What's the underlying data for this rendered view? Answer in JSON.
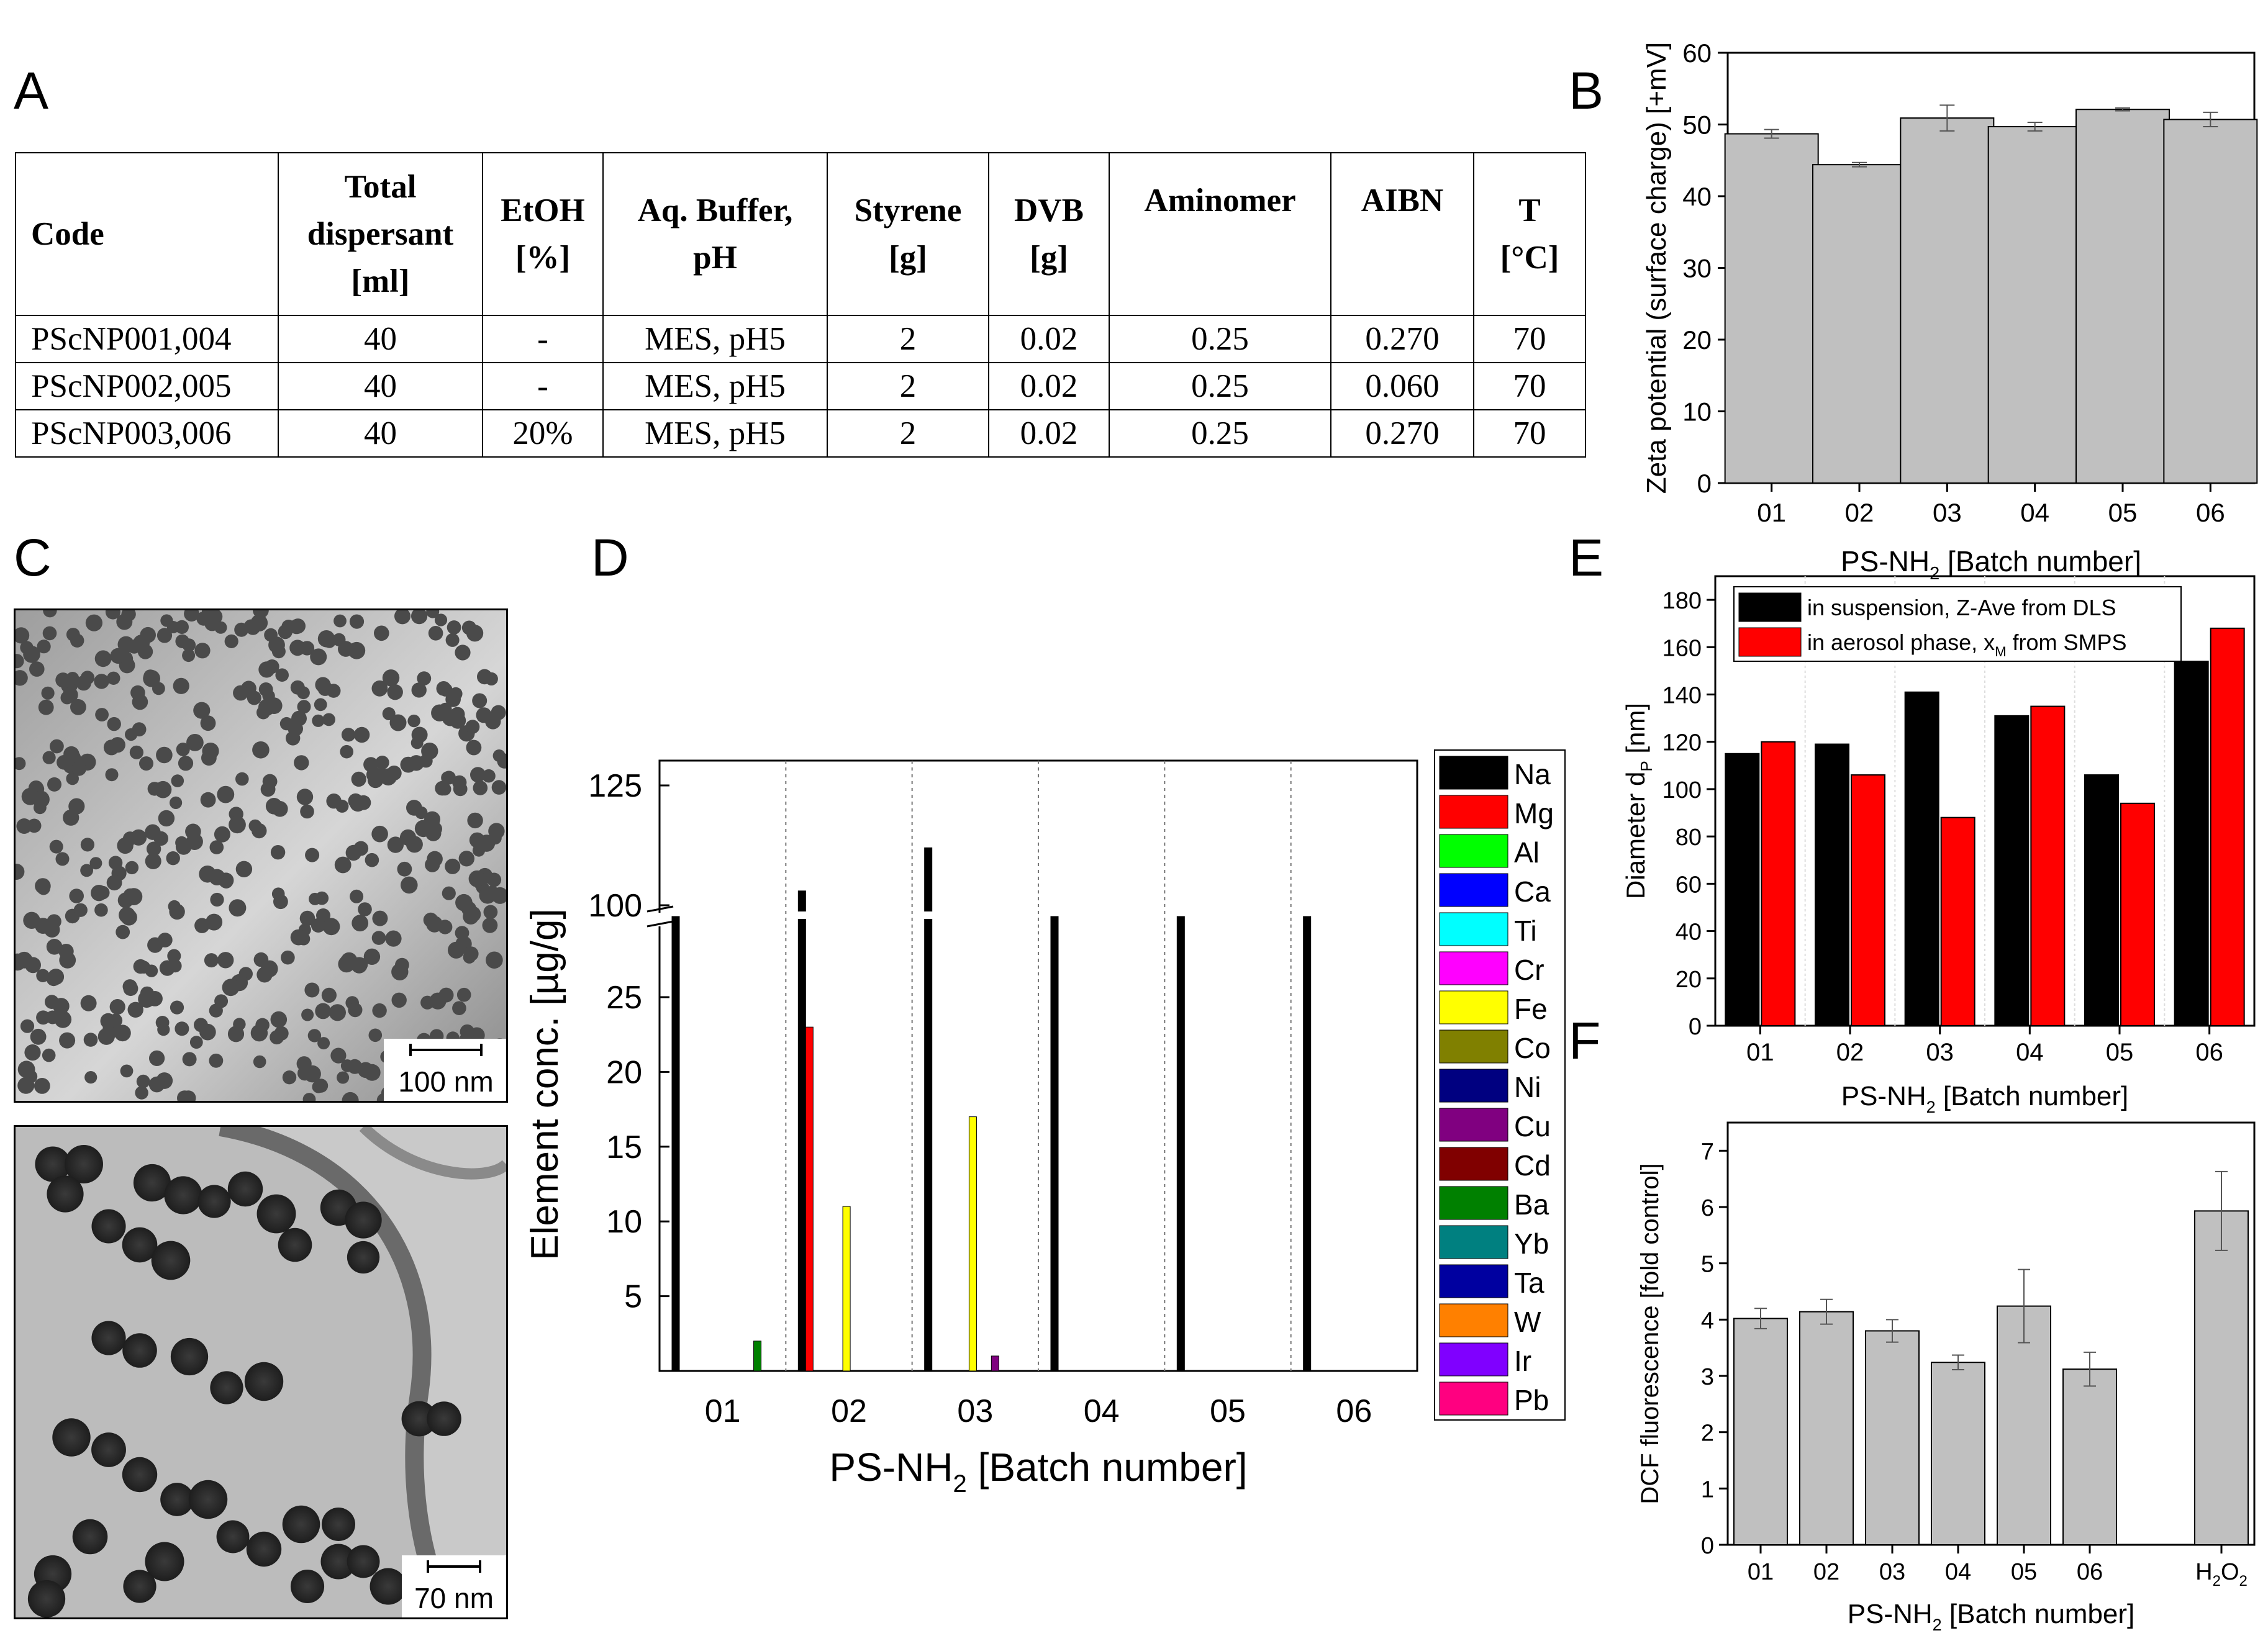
{
  "panel_labels": {
    "a": "A",
    "b": "B",
    "c": "C",
    "d": "D",
    "e": "E",
    "f": "F"
  },
  "table": {
    "headers": [
      "Code",
      "Total dispersant [ml]",
      "EtOH [%]",
      "Aq. Buffer, pH",
      "Styrene [g]",
      "DVB [g]",
      "Aminomer",
      "AIBN",
      "T [°C]"
    ],
    "header_lines": [
      [
        "Code"
      ],
      [
        "Total",
        "dispersant",
        "[ml]"
      ],
      [
        "EtOH",
        "[%]"
      ],
      [
        "Aq. Buffer,",
        "pH"
      ],
      [
        "Styrene",
        "[g]"
      ],
      [
        "DVB",
        "[g]"
      ],
      [
        "Aminomer"
      ],
      [
        "AIBN"
      ],
      [
        "T",
        "[°C]"
      ]
    ],
    "rows": [
      [
        "PScNP001,004",
        "40",
        "-",
        "MES, pH5",
        "2",
        "0.02",
        "0.25",
        "0.270",
        "70"
      ],
      [
        "PScNP002,005",
        "40",
        "-",
        "MES, pH5",
        "2",
        "0.02",
        "0.25",
        "0.060",
        "70"
      ],
      [
        "PScNP003,006",
        "40",
        "20%",
        "MES, pH5",
        "2",
        "0.02",
        "0.25",
        "0.270",
        "70"
      ]
    ]
  },
  "micrographs": {
    "top_scale_bar": "100 nm",
    "bottom_scale_bar": "70 nm"
  },
  "colors": {
    "bar_gray": "#c0c0c0",
    "black": "#000000",
    "red": "#ff0000"
  },
  "chart_data": [
    {
      "id": "B",
      "type": "bar",
      "categories": [
        "01",
        "02",
        "03",
        "04",
        "05",
        "06"
      ],
      "values": [
        48.7,
        44.4,
        50.9,
        49.7,
        52.1,
        50.7
      ],
      "errors": [
        0.6,
        0.3,
        1.8,
        0.6,
        0.2,
        1.0
      ],
      "xlabel": "PS-NH",
      "xlabel_sub": "2",
      "xlabel_tail": " [Batch number]",
      "ylabel": "Zeta potential (surface charge) [+mV]",
      "ylim": [
        0,
        60
      ],
      "yticks": [
        "0",
        "10",
        "20",
        "30",
        "40",
        "50",
        "60"
      ]
    },
    {
      "id": "D",
      "type": "bar",
      "categories": [
        "01",
        "02",
        "03",
        "04",
        "05",
        "06"
      ],
      "xlabel": "PS-NH",
      "xlabel_sub": "2",
      "xlabel_tail": " [Batch number]",
      "ylabel": "Element conc. [µg/g]",
      "yticks_lower": [
        "5",
        "10",
        "15",
        "20",
        "25"
      ],
      "yticks_upper": [
        "100",
        "125"
      ],
      "axis_break": "between 25 and 100",
      "legend": [
        {
          "name": "Na",
          "color": "#000000"
        },
        {
          "name": "Mg",
          "color": "#ff0000"
        },
        {
          "name": "Al",
          "color": "#00ff00"
        },
        {
          "name": "Ca",
          "color": "#0000ff"
        },
        {
          "name": "Ti",
          "color": "#00ffff"
        },
        {
          "name": "Cr",
          "color": "#ff00ff"
        },
        {
          "name": "Fe",
          "color": "#ffff00"
        },
        {
          "name": "Co",
          "color": "#808000"
        },
        {
          "name": "Ni",
          "color": "#000080"
        },
        {
          "name": "Cu",
          "color": "#800080"
        },
        {
          "name": "Cd",
          "color": "#800000"
        },
        {
          "name": "Ba",
          "color": "#008000"
        },
        {
          "name": "Yb",
          "color": "#008080"
        },
        {
          "name": "Ta",
          "color": "#0000a0"
        },
        {
          "name": "W",
          "color": "#ff8000"
        },
        {
          "name": "Ir",
          "color": "#8000ff"
        },
        {
          "name": "Pb",
          "color": "#ff0080"
        }
      ],
      "series_values": {
        "Na": [
          30,
          103,
          112,
          30,
          30,
          30
        ],
        "Mg": [
          0,
          23,
          0,
          0,
          0,
          0
        ],
        "Fe": [
          0,
          11,
          17,
          0,
          0,
          0
        ],
        "Cu": [
          0,
          0,
          1,
          0,
          0,
          0
        ],
        "Ba": [
          2,
          0,
          0,
          0,
          0,
          0
        ]
      }
    },
    {
      "id": "E",
      "type": "bar",
      "categories": [
        "01",
        "02",
        "03",
        "04",
        "05",
        "06"
      ],
      "series": [
        {
          "name": "in suspension, Z-Ave from DLS",
          "color": "#000000",
          "values": [
            115,
            119,
            141,
            131,
            106,
            154
          ]
        },
        {
          "name": "in aerosol phase,  x",
          "name_sub": "M",
          "name_tail": " from SMPS",
          "color": "#ff0000",
          "values": [
            120,
            106,
            88,
            135,
            94,
            168
          ]
        }
      ],
      "xlabel": "PS-NH",
      "xlabel_sub": "2",
      "xlabel_tail": " [Batch number]",
      "ylabel": "Diameter d",
      "ylabel_sub": "P",
      "ylabel_tail": " [nm]",
      "ylim": [
        0,
        190
      ],
      "yticks": [
        "0",
        "20",
        "40",
        "60",
        "80",
        "100",
        "120",
        "140",
        "160",
        "180"
      ]
    },
    {
      "id": "F",
      "type": "bar",
      "categories": [
        "01",
        "02",
        "03",
        "04",
        "05",
        "06",
        "",
        "H2O2"
      ],
      "values": [
        4.02,
        4.14,
        3.8,
        3.24,
        4.24,
        3.12,
        null,
        5.93
      ],
      "errors": [
        0.18,
        0.22,
        0.2,
        0.13,
        0.65,
        0.3,
        null,
        0.7
      ],
      "xlabel": "PS-NH",
      "xlabel_sub": "2",
      "xlabel_tail": " [Batch number]",
      "ylabel": "DCF fluorescence [fold control]",
      "ylim": [
        0,
        7.5
      ],
      "yticks": [
        "0",
        "1",
        "2",
        "3",
        "4",
        "5",
        "6",
        "7"
      ]
    }
  ]
}
